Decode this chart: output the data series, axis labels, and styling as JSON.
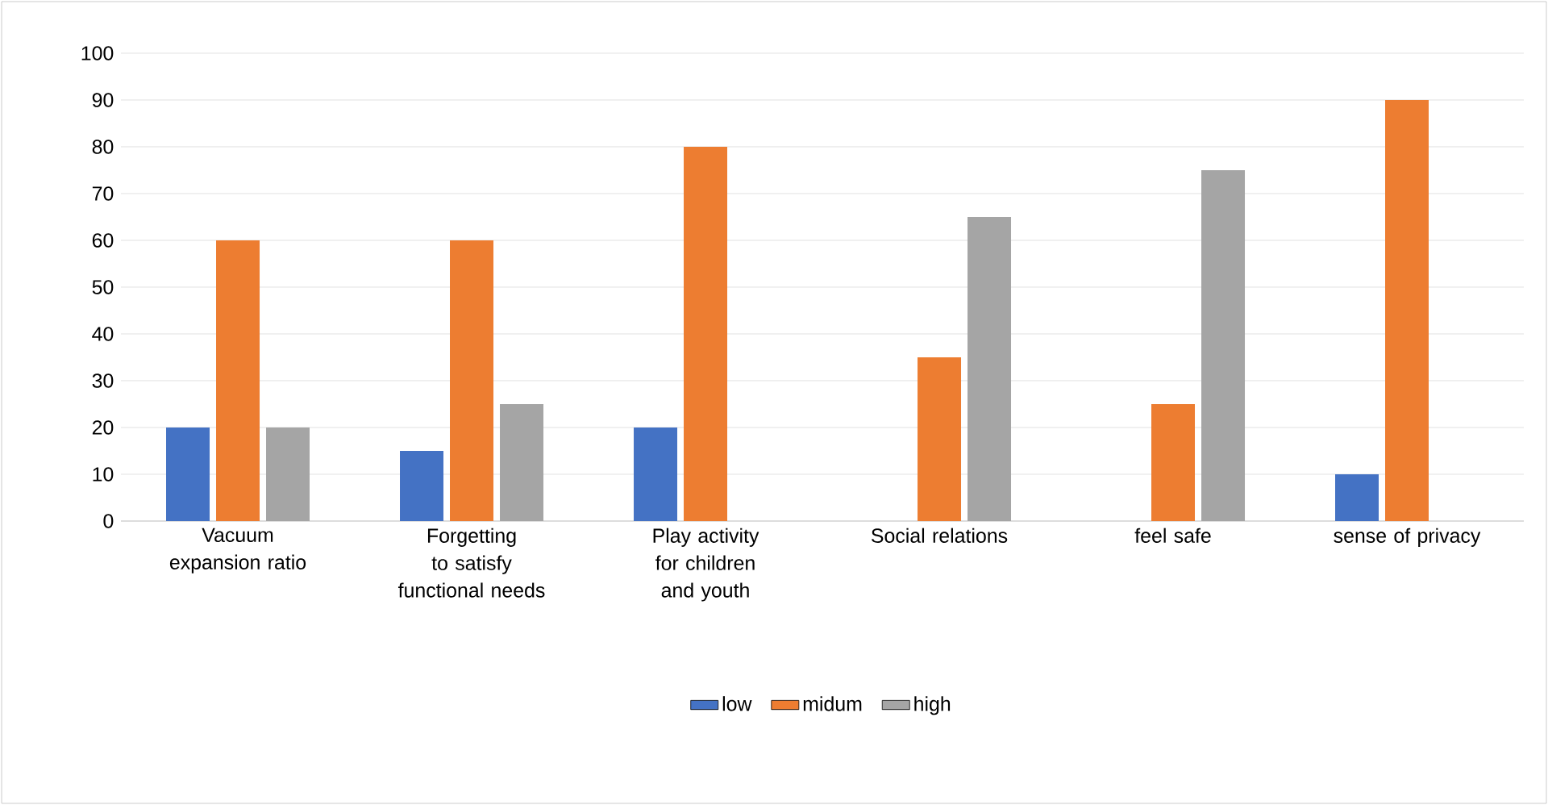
{
  "chart_data": {
    "type": "bar",
    "categories": [
      "Vacuum expansion ratio",
      "Forgetting to satisfy functional needs",
      "Play activity for children and youth",
      "Social relations",
      "feel safe",
      "sense of privacy"
    ],
    "series": [
      {
        "name": "low",
        "color": "#4472c4",
        "values": [
          20,
          15,
          20,
          0,
          0,
          10
        ]
      },
      {
        "name": "midum",
        "color": "#ed7d31",
        "values": [
          60,
          60,
          80,
          35,
          25,
          90
        ]
      },
      {
        "name": "high",
        "color": "#a5a5a5",
        "values": [
          20,
          25,
          0,
          65,
          75,
          0
        ]
      }
    ],
    "ylim": [
      0,
      100
    ],
    "yticks": [
      0,
      10,
      20,
      30,
      40,
      50,
      60,
      70,
      80,
      90,
      100
    ],
    "grid": "y",
    "legend": "bottom"
  }
}
